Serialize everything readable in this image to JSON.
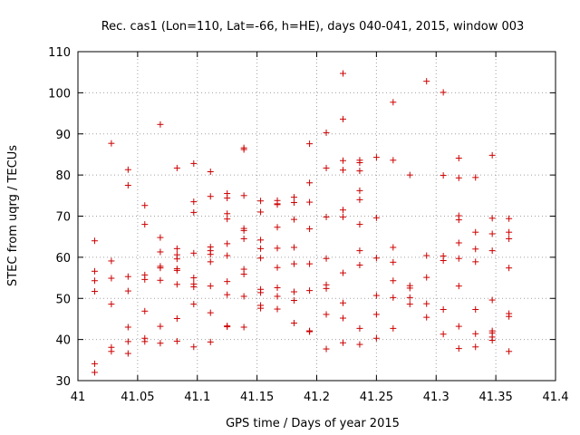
{
  "chart_data": {
    "type": "scatter",
    "title": "Rec. cas1 (Lon=110, Lat=-66, h=HE), days 040-041, 2015, window 003",
    "xlabel": "GPS time / Days of year 2015",
    "ylabel": "STEC from uqrg / TECUs",
    "xlim": [
      41,
      41.4
    ],
    "ylim": [
      30,
      110
    ],
    "xticks": [
      41,
      41.05,
      41.1,
      41.15,
      41.2,
      41.25,
      41.3,
      41.35,
      41.4
    ],
    "xtick_labels": [
      "41",
      "41.05",
      "41.1",
      "41.15",
      "41.2",
      "41.25",
      "41.3",
      "41.35",
      "41.4"
    ],
    "yticks": [
      30,
      40,
      50,
      60,
      70,
      80,
      90,
      100,
      110
    ],
    "ytick_labels": [
      "30",
      "40",
      "50",
      "60",
      "70",
      "80",
      "90",
      "100",
      "110"
    ],
    "grid": true,
    "marker": "+",
    "marker_color": "#cc0000",
    "points": [
      [
        41.014,
        64.0
      ],
      [
        41.014,
        56.6
      ],
      [
        41.014,
        54.3
      ],
      [
        41.014,
        51.7
      ],
      [
        41.014,
        34.1
      ],
      [
        41.014,
        32.0
      ],
      [
        41.028,
        87.7
      ],
      [
        41.028,
        59.1
      ],
      [
        41.028,
        54.9
      ],
      [
        41.028,
        48.6
      ],
      [
        41.028,
        38.1
      ],
      [
        41.028,
        37.1
      ],
      [
        41.042,
        81.3
      ],
      [
        41.042,
        77.5
      ],
      [
        41.042,
        55.3
      ],
      [
        41.042,
        51.8
      ],
      [
        41.042,
        43.0
      ],
      [
        41.042,
        39.5
      ],
      [
        41.042,
        36.6
      ],
      [
        41.056,
        72.6
      ],
      [
        41.056,
        68.0
      ],
      [
        41.056,
        55.7
      ],
      [
        41.056,
        54.6
      ],
      [
        41.056,
        46.9
      ],
      [
        41.056,
        40.3
      ],
      [
        41.056,
        39.5
      ],
      [
        41.069,
        92.3
      ],
      [
        41.069,
        64.8
      ],
      [
        41.069,
        61.3
      ],
      [
        41.069,
        57.8
      ],
      [
        41.069,
        57.4
      ],
      [
        41.069,
        54.4
      ],
      [
        41.069,
        43.2
      ],
      [
        41.069,
        39.1
      ],
      [
        41.083,
        81.7
      ],
      [
        41.083,
        62.1
      ],
      [
        41.083,
        60.6
      ],
      [
        41.083,
        59.6
      ],
      [
        41.083,
        57.2
      ],
      [
        41.083,
        56.8
      ],
      [
        41.083,
        53.4
      ],
      [
        41.083,
        45.1
      ],
      [
        41.083,
        39.6
      ],
      [
        41.097,
        82.8
      ],
      [
        41.097,
        73.5
      ],
      [
        41.097,
        70.9
      ],
      [
        41.097,
        61.0
      ],
      [
        41.097,
        55.0
      ],
      [
        41.097,
        53.5
      ],
      [
        41.097,
        52.8
      ],
      [
        41.097,
        48.6
      ],
      [
        41.097,
        38.2
      ],
      [
        41.111,
        80.8
      ],
      [
        41.111,
        74.8
      ],
      [
        41.111,
        62.5
      ],
      [
        41.111,
        61.6
      ],
      [
        41.111,
        60.7
      ],
      [
        41.111,
        58.9
      ],
      [
        41.111,
        53.0
      ],
      [
        41.111,
        46.5
      ],
      [
        41.111,
        39.4
      ],
      [
        41.125,
        75.5
      ],
      [
        41.125,
        74.4
      ],
      [
        41.125,
        70.6
      ],
      [
        41.125,
        69.3
      ],
      [
        41.125,
        63.3
      ],
      [
        41.125,
        60.4
      ],
      [
        41.125,
        54.1
      ],
      [
        41.125,
        50.9
      ],
      [
        41.125,
        43.3
      ],
      [
        41.125,
        43.1
      ],
      [
        41.139,
        86.6
      ],
      [
        41.139,
        86.2
      ],
      [
        41.139,
        75.0
      ],
      [
        41.139,
        67.0
      ],
      [
        41.139,
        66.5
      ],
      [
        41.139,
        64.5
      ],
      [
        41.139,
        57.1
      ],
      [
        41.139,
        55.9
      ],
      [
        41.139,
        50.5
      ],
      [
        41.139,
        43.0
      ],
      [
        41.153,
        73.7
      ],
      [
        41.153,
        71.0
      ],
      [
        41.153,
        64.2
      ],
      [
        41.153,
        62.1
      ],
      [
        41.153,
        59.8
      ],
      [
        41.153,
        52.2
      ],
      [
        41.153,
        51.4
      ],
      [
        41.153,
        48.3
      ],
      [
        41.153,
        47.6
      ],
      [
        41.167,
        73.8
      ],
      [
        41.167,
        73.0
      ],
      [
        41.167,
        72.8
      ],
      [
        41.167,
        67.3
      ],
      [
        41.167,
        62.2
      ],
      [
        41.167,
        57.5
      ],
      [
        41.167,
        52.6
      ],
      [
        41.167,
        50.5
      ],
      [
        41.167,
        47.4
      ],
      [
        41.181,
        74.6
      ],
      [
        41.181,
        73.3
      ],
      [
        41.181,
        69.2
      ],
      [
        41.181,
        62.4
      ],
      [
        41.181,
        58.4
      ],
      [
        41.181,
        51.6
      ],
      [
        41.181,
        49.5
      ],
      [
        41.181,
        44.0
      ],
      [
        41.194,
        87.6
      ],
      [
        41.194,
        78.1
      ],
      [
        41.194,
        73.4
      ],
      [
        41.194,
        66.9
      ],
      [
        41.194,
        58.4
      ],
      [
        41.194,
        51.9
      ],
      [
        41.194,
        42.1
      ],
      [
        41.194,
        41.9
      ],
      [
        41.208,
        90.3
      ],
      [
        41.208,
        81.7
      ],
      [
        41.208,
        69.8
      ],
      [
        41.208,
        59.7
      ],
      [
        41.208,
        53.3
      ],
      [
        41.208,
        52.4
      ],
      [
        41.208,
        46.1
      ],
      [
        41.208,
        37.7
      ],
      [
        41.222,
        104.7
      ],
      [
        41.222,
        93.6
      ],
      [
        41.222,
        83.5
      ],
      [
        41.222,
        81.2
      ],
      [
        41.222,
        71.5
      ],
      [
        41.222,
        69.8
      ],
      [
        41.222,
        56.2
      ],
      [
        41.222,
        48.9
      ],
      [
        41.222,
        45.2
      ],
      [
        41.222,
        39.2
      ],
      [
        41.236,
        83.6
      ],
      [
        41.236,
        83.0
      ],
      [
        41.236,
        81.0
      ],
      [
        41.236,
        76.2
      ],
      [
        41.236,
        74.0
      ],
      [
        41.236,
        68.0
      ],
      [
        41.236,
        61.6
      ],
      [
        41.236,
        58.1
      ],
      [
        41.236,
        42.7
      ],
      [
        41.236,
        38.8
      ],
      [
        41.25,
        84.3
      ],
      [
        41.25,
        69.6
      ],
      [
        41.25,
        59.8
      ],
      [
        41.25,
        50.7
      ],
      [
        41.25,
        46.1
      ],
      [
        41.25,
        40.3
      ],
      [
        41.264,
        97.7
      ],
      [
        41.264,
        83.6
      ],
      [
        41.264,
        62.4
      ],
      [
        41.264,
        58.8
      ],
      [
        41.264,
        54.3
      ],
      [
        41.264,
        50.2
      ],
      [
        41.264,
        42.7
      ],
      [
        41.278,
        80.0
      ],
      [
        41.278,
        53.1
      ],
      [
        41.278,
        52.5
      ],
      [
        41.278,
        50.2
      ],
      [
        41.278,
        48.6
      ],
      [
        41.292,
        102.8
      ],
      [
        41.292,
        60.4
      ],
      [
        41.292,
        55.1
      ],
      [
        41.292,
        48.7
      ],
      [
        41.292,
        45.4
      ],
      [
        41.306,
        100.1
      ],
      [
        41.306,
        79.9
      ],
      [
        41.306,
        60.3
      ],
      [
        41.306,
        59.2
      ],
      [
        41.306,
        47.3
      ],
      [
        41.306,
        41.3
      ],
      [
        41.319,
        84.1
      ],
      [
        41.319,
        79.3
      ],
      [
        41.319,
        70.1
      ],
      [
        41.319,
        69.1
      ],
      [
        41.319,
        63.5
      ],
      [
        41.319,
        59.7
      ],
      [
        41.319,
        53.0
      ],
      [
        41.319,
        43.2
      ],
      [
        41.319,
        37.8
      ],
      [
        41.333,
        79.4
      ],
      [
        41.333,
        66.1
      ],
      [
        41.333,
        62.0
      ],
      [
        41.333,
        58.9
      ],
      [
        41.333,
        47.3
      ],
      [
        41.333,
        41.4
      ],
      [
        41.333,
        38.2
      ],
      [
        41.347,
        84.8
      ],
      [
        41.347,
        69.5
      ],
      [
        41.347,
        65.7
      ],
      [
        41.347,
        61.6
      ],
      [
        41.347,
        49.6
      ],
      [
        41.347,
        42.1
      ],
      [
        41.347,
        41.6
      ],
      [
        41.347,
        40.6
      ],
      [
        41.347,
        39.8
      ],
      [
        41.361,
        69.4
      ],
      [
        41.361,
        66.1
      ],
      [
        41.361,
        64.5
      ],
      [
        41.361,
        57.4
      ],
      [
        41.361,
        46.3
      ],
      [
        41.361,
        45.6
      ],
      [
        41.361,
        37.1
      ]
    ]
  }
}
